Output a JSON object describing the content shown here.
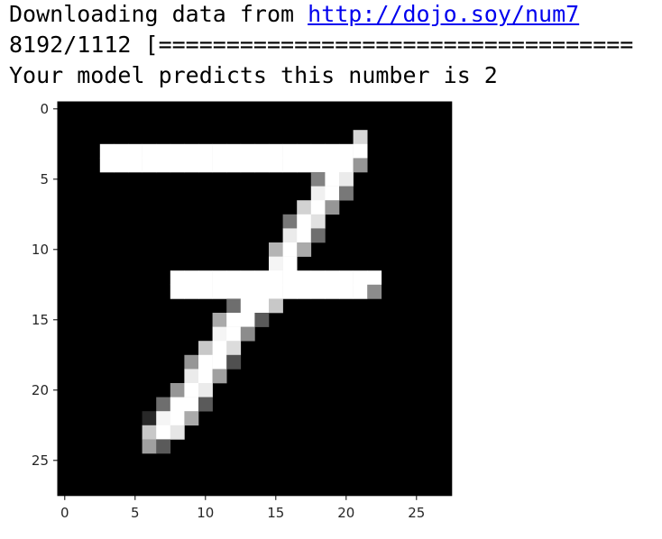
{
  "console": {
    "download_prefix": "Downloading data from ",
    "download_url": "http://dojo.soy/num7",
    "progress_text": "8192/1112 [===================================",
    "prediction_text": "Your model predicts this number is 2"
  },
  "chart_data": {
    "type": "heatmap",
    "title": "",
    "xlabel": "",
    "ylabel": "",
    "colormap": "gray",
    "xlim": [
      -0.5,
      27.5
    ],
    "ylim": [
      27.5,
      -0.5
    ],
    "x_ticks": [
      0,
      5,
      10,
      15,
      20,
      25
    ],
    "y_ticks": [
      0,
      5,
      10,
      15,
      20,
      25
    ],
    "x_tick_labels": [
      "0",
      "5",
      "10",
      "15",
      "20",
      "25"
    ],
    "y_tick_labels": [
      "0",
      "5",
      "10",
      "15",
      "20",
      "25"
    ],
    "grid": false,
    "rows": 28,
    "cols": 28,
    "value_range": [
      0,
      255
    ],
    "pixels": [
      {
        "row": 2,
        "col": 21,
        "v": 215
      },
      {
        "row": 3,
        "col": 3,
        "v": 255
      },
      {
        "row": 3,
        "col": 4,
        "v": 255
      },
      {
        "row": 3,
        "col": 5,
        "v": 255
      },
      {
        "row": 3,
        "col": 6,
        "v": 255
      },
      {
        "row": 3,
        "col": 7,
        "v": 255
      },
      {
        "row": 3,
        "col": 8,
        "v": 255
      },
      {
        "row": 3,
        "col": 9,
        "v": 255
      },
      {
        "row": 3,
        "col": 10,
        "v": 255
      },
      {
        "row": 3,
        "col": 11,
        "v": 255
      },
      {
        "row": 3,
        "col": 12,
        "v": 255
      },
      {
        "row": 3,
        "col": 13,
        "v": 255
      },
      {
        "row": 3,
        "col": 14,
        "v": 255
      },
      {
        "row": 3,
        "col": 15,
        "v": 255
      },
      {
        "row": 3,
        "col": 16,
        "v": 255
      },
      {
        "row": 3,
        "col": 17,
        "v": 255
      },
      {
        "row": 3,
        "col": 18,
        "v": 255
      },
      {
        "row": 3,
        "col": 19,
        "v": 255
      },
      {
        "row": 3,
        "col": 20,
        "v": 255
      },
      {
        "row": 3,
        "col": 21,
        "v": 255
      },
      {
        "row": 4,
        "col": 3,
        "v": 255
      },
      {
        "row": 4,
        "col": 4,
        "v": 255
      },
      {
        "row": 4,
        "col": 5,
        "v": 255
      },
      {
        "row": 4,
        "col": 6,
        "v": 255
      },
      {
        "row": 4,
        "col": 7,
        "v": 255
      },
      {
        "row": 4,
        "col": 8,
        "v": 255
      },
      {
        "row": 4,
        "col": 9,
        "v": 255
      },
      {
        "row": 4,
        "col": 10,
        "v": 255
      },
      {
        "row": 4,
        "col": 11,
        "v": 255
      },
      {
        "row": 4,
        "col": 12,
        "v": 255
      },
      {
        "row": 4,
        "col": 13,
        "v": 255
      },
      {
        "row": 4,
        "col": 14,
        "v": 255
      },
      {
        "row": 4,
        "col": 15,
        "v": 255
      },
      {
        "row": 4,
        "col": 16,
        "v": 255
      },
      {
        "row": 4,
        "col": 17,
        "v": 255
      },
      {
        "row": 4,
        "col": 18,
        "v": 255
      },
      {
        "row": 4,
        "col": 19,
        "v": 255
      },
      {
        "row": 4,
        "col": 20,
        "v": 255
      },
      {
        "row": 4,
        "col": 21,
        "v": 150
      },
      {
        "row": 5,
        "col": 18,
        "v": 130
      },
      {
        "row": 5,
        "col": 19,
        "v": 255
      },
      {
        "row": 5,
        "col": 20,
        "v": 235
      },
      {
        "row": 6,
        "col": 18,
        "v": 240
      },
      {
        "row": 6,
        "col": 19,
        "v": 255
      },
      {
        "row": 6,
        "col": 20,
        "v": 120
      },
      {
        "row": 7,
        "col": 17,
        "v": 210
      },
      {
        "row": 7,
        "col": 18,
        "v": 255
      },
      {
        "row": 7,
        "col": 19,
        "v": 150
      },
      {
        "row": 8,
        "col": 16,
        "v": 120
      },
      {
        "row": 8,
        "col": 17,
        "v": 255
      },
      {
        "row": 8,
        "col": 18,
        "v": 225
      },
      {
        "row": 9,
        "col": 16,
        "v": 235
      },
      {
        "row": 9,
        "col": 17,
        "v": 255
      },
      {
        "row": 9,
        "col": 18,
        "v": 110
      },
      {
        "row": 10,
        "col": 15,
        "v": 180
      },
      {
        "row": 10,
        "col": 16,
        "v": 255
      },
      {
        "row": 10,
        "col": 17,
        "v": 170
      },
      {
        "row": 11,
        "col": 15,
        "v": 245
      },
      {
        "row": 11,
        "col": 16,
        "v": 255
      },
      {
        "row": 12,
        "col": 8,
        "v": 255
      },
      {
        "row": 12,
        "col": 9,
        "v": 255
      },
      {
        "row": 12,
        "col": 10,
        "v": 255
      },
      {
        "row": 12,
        "col": 11,
        "v": 255
      },
      {
        "row": 12,
        "col": 12,
        "v": 255
      },
      {
        "row": 12,
        "col": 13,
        "v": 255
      },
      {
        "row": 12,
        "col": 14,
        "v": 255
      },
      {
        "row": 12,
        "col": 15,
        "v": 255
      },
      {
        "row": 12,
        "col": 16,
        "v": 255
      },
      {
        "row": 12,
        "col": 17,
        "v": 255
      },
      {
        "row": 12,
        "col": 18,
        "v": 255
      },
      {
        "row": 12,
        "col": 19,
        "v": 255
      },
      {
        "row": 12,
        "col": 20,
        "v": 255
      },
      {
        "row": 12,
        "col": 21,
        "v": 255
      },
      {
        "row": 12,
        "col": 22,
        "v": 255
      },
      {
        "row": 13,
        "col": 8,
        "v": 255
      },
      {
        "row": 13,
        "col": 9,
        "v": 255
      },
      {
        "row": 13,
        "col": 10,
        "v": 255
      },
      {
        "row": 13,
        "col": 11,
        "v": 255
      },
      {
        "row": 13,
        "col": 12,
        "v": 255
      },
      {
        "row": 13,
        "col": 13,
        "v": 255
      },
      {
        "row": 13,
        "col": 14,
        "v": 255
      },
      {
        "row": 13,
        "col": 15,
        "v": 255
      },
      {
        "row": 13,
        "col": 16,
        "v": 255
      },
      {
        "row": 13,
        "col": 17,
        "v": 255
      },
      {
        "row": 13,
        "col": 18,
        "v": 255
      },
      {
        "row": 13,
        "col": 19,
        "v": 255
      },
      {
        "row": 13,
        "col": 20,
        "v": 255
      },
      {
        "row": 13,
        "col": 21,
        "v": 255
      },
      {
        "row": 13,
        "col": 22,
        "v": 140
      },
      {
        "row": 14,
        "col": 12,
        "v": 110
      },
      {
        "row": 14,
        "col": 13,
        "v": 255
      },
      {
        "row": 14,
        "col": 14,
        "v": 255
      },
      {
        "row": 14,
        "col": 15,
        "v": 200
      },
      {
        "row": 15,
        "col": 11,
        "v": 170
      },
      {
        "row": 15,
        "col": 12,
        "v": 255
      },
      {
        "row": 15,
        "col": 13,
        "v": 255
      },
      {
        "row": 15,
        "col": 14,
        "v": 90
      },
      {
        "row": 16,
        "col": 11,
        "v": 245
      },
      {
        "row": 16,
        "col": 12,
        "v": 255
      },
      {
        "row": 16,
        "col": 13,
        "v": 140
      },
      {
        "row": 17,
        "col": 10,
        "v": 200
      },
      {
        "row": 17,
        "col": 11,
        "v": 255
      },
      {
        "row": 17,
        "col": 12,
        "v": 220
      },
      {
        "row": 18,
        "col": 9,
        "v": 150
      },
      {
        "row": 18,
        "col": 10,
        "v": 255
      },
      {
        "row": 18,
        "col": 11,
        "v": 255
      },
      {
        "row": 18,
        "col": 12,
        "v": 80
      },
      {
        "row": 19,
        "col": 9,
        "v": 235
      },
      {
        "row": 19,
        "col": 10,
        "v": 255
      },
      {
        "row": 19,
        "col": 11,
        "v": 160
      },
      {
        "row": 20,
        "col": 8,
        "v": 150
      },
      {
        "row": 20,
        "col": 9,
        "v": 255
      },
      {
        "row": 20,
        "col": 10,
        "v": 235
      },
      {
        "row": 21,
        "col": 7,
        "v": 110
      },
      {
        "row": 21,
        "col": 8,
        "v": 255
      },
      {
        "row": 21,
        "col": 9,
        "v": 255
      },
      {
        "row": 21,
        "col": 10,
        "v": 90
      },
      {
        "row": 22,
        "col": 6,
        "v": 40
      },
      {
        "row": 22,
        "col": 7,
        "v": 245
      },
      {
        "row": 22,
        "col": 8,
        "v": 255
      },
      {
        "row": 22,
        "col": 9,
        "v": 170
      },
      {
        "row": 23,
        "col": 6,
        "v": 200
      },
      {
        "row": 23,
        "col": 7,
        "v": 255
      },
      {
        "row": 23,
        "col": 8,
        "v": 230
      },
      {
        "row": 24,
        "col": 6,
        "v": 160
      },
      {
        "row": 24,
        "col": 7,
        "v": 90
      }
    ]
  }
}
